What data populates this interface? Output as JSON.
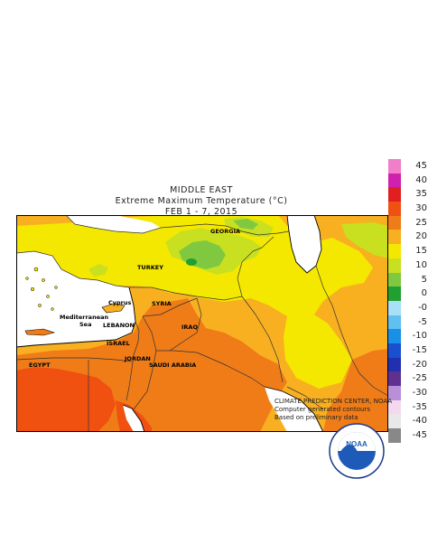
{
  "title": {
    "region": "MIDDLE EAST",
    "variable": "Extreme Maximum Temperature (°C)",
    "period": "FEB 1 - 7, 2015"
  },
  "legend": {
    "items": [
      {
        "label": "45",
        "color": "#f07ec8"
      },
      {
        "label": "40",
        "color": "#d020b0"
      },
      {
        "label": "35",
        "color": "#e02020"
      },
      {
        "label": "30",
        "color": "#f05010"
      },
      {
        "label": "25",
        "color": "#f07c18"
      },
      {
        "label": "20",
        "color": "#f8b020"
      },
      {
        "label": "15",
        "color": "#f5e800"
      },
      {
        "label": "10",
        "color": "#c8e020"
      },
      {
        "label": "5",
        "color": "#80c840"
      },
      {
        "label": "0",
        "color": "#20a030"
      },
      {
        "label": "-0",
        "color": "#a8e0f8"
      },
      {
        "label": "-5",
        "color": "#60c0f0"
      },
      {
        "label": "-10",
        "color": "#1890e8"
      },
      {
        "label": "-15",
        "color": "#1850d0"
      },
      {
        "label": "-20",
        "color": "#2030b0"
      },
      {
        "label": "-25",
        "color": "#603090"
      },
      {
        "label": "-30",
        "color": "#b890d8"
      },
      {
        "label": "-35",
        "color": "#f4d8f0"
      },
      {
        "label": "-40",
        "color": "#e8e8e8"
      },
      {
        "label": "-45",
        "color": "#888888"
      }
    ]
  },
  "map_labels": {
    "georgia": "GEORGIA",
    "turkey": "TURKEY",
    "cyprus": "Cyprus",
    "mediterranean": "Mediterranean",
    "sea": "Sea",
    "syria": "SYRIA",
    "lebanon": "LEBANON",
    "iraq": "IRAQ",
    "israel": "ISRAEL",
    "jordan": "JORDAN",
    "egypt": "EGYPT",
    "saudi_arabia": "SAUDI ARABIA"
  },
  "credits": {
    "line1": "CLIMATE PREDICTION CENTER, NOAA",
    "line2": "Computer generated contours",
    "line3": "Based on preliminary data"
  },
  "logo": {
    "text": "NOAA",
    "icon": "noaa-logo-icon"
  }
}
